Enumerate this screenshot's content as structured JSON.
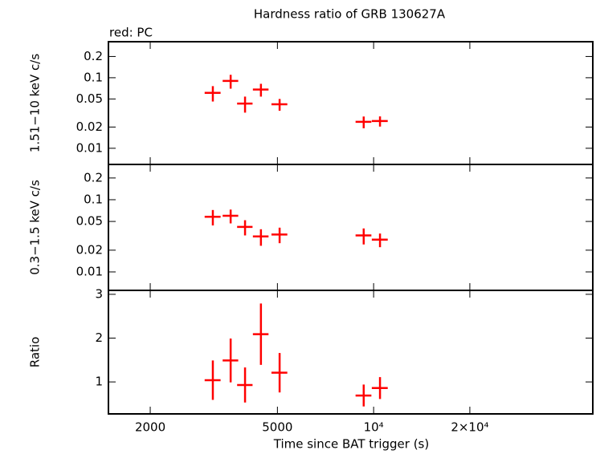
{
  "chart_data": [
    {
      "type": "errorbar",
      "title": "Hardness ratio of GRB 130627A",
      "annotation": "red: PC",
      "ylabel": "1.51−10 keV c/s",
      "log_x": true,
      "log_y": true,
      "xlim": [
        1480,
        48500
      ],
      "ylim": [
        0.0059,
        0.324
      ],
      "yticks": [
        0.01,
        0.02,
        0.05,
        0.1,
        0.2
      ],
      "x": [
        3140,
        3570,
        3960,
        4440,
        5080,
        9310,
        10470
      ],
      "xerr": [
        180,
        200,
        220,
        250,
        290,
        530,
        600
      ],
      "color": "#ff0000",
      "values": [
        0.061,
        0.09,
        0.043,
        0.068,
        0.042,
        0.0237,
        0.0243
      ],
      "yerr": [
        0.015,
        0.02,
        0.011,
        0.014,
        0.008,
        0.0045,
        0.004
      ]
    },
    {
      "type": "errorbar",
      "ylabel": "0.3−1.5 keV c/s",
      "log_x": true,
      "log_y": true,
      "xlim": [
        1480,
        48500
      ],
      "ylim": [
        0.00555,
        0.308
      ],
      "yticks": [
        0.01,
        0.02,
        0.05,
        0.1,
        0.2
      ],
      "x": [
        3140,
        3570,
        3960,
        4440,
        5080,
        9310,
        10470
      ],
      "xerr": [
        180,
        200,
        220,
        250,
        290,
        530,
        600
      ],
      "color": "#ff0000",
      "values": [
        0.058,
        0.06,
        0.042,
        0.031,
        0.033,
        0.032,
        0.028
      ],
      "yerr": [
        0.014,
        0.013,
        0.01,
        0.008,
        0.008,
        0.008,
        0.006
      ]
    },
    {
      "type": "errorbar",
      "ylabel": "Ratio",
      "xlabel": "Time since BAT trigger (s)",
      "log_x": true,
      "log_y": false,
      "xlim": [
        1480,
        48500
      ],
      "ylim": [
        0.27,
        3.09
      ],
      "yticks": [
        1,
        2,
        3
      ],
      "xticks": [
        2000,
        5000,
        {
          "value": 10000,
          "label": "10⁴"
        },
        {
          "value": 20000,
          "label": "2×10⁴"
        }
      ],
      "x": [
        3140,
        3570,
        3960,
        4440,
        5080,
        9310,
        10470
      ],
      "xerr": [
        180,
        200,
        220,
        250,
        290,
        530,
        600
      ],
      "color": "#ff0000",
      "values": [
        1.04,
        1.49,
        0.93,
        2.09,
        1.21,
        0.69,
        0.86
      ],
      "yerr": [
        0.45,
        0.5,
        0.4,
        0.7,
        0.45,
        0.25,
        0.25
      ]
    }
  ]
}
